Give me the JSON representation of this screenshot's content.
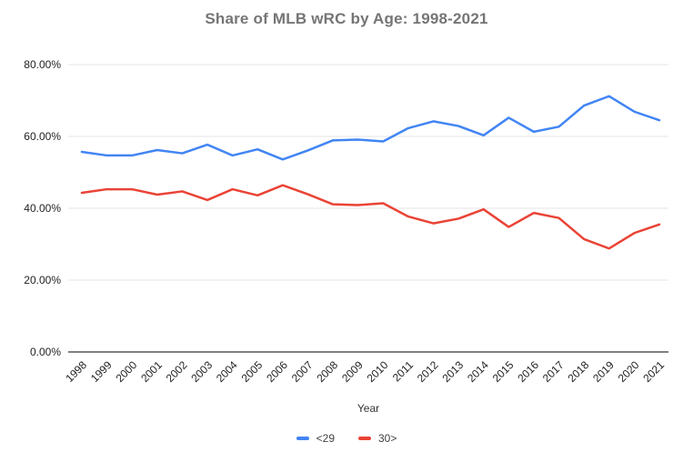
{
  "title": "Share of MLB wRC by Age: 1998-2021",
  "chart_data": {
    "type": "line",
    "title": "Share of MLB wRC by Age: 1998-2021",
    "xlabel": "Year",
    "ylabel": "",
    "ylim": [
      0,
      80
    ],
    "grid": true,
    "legend_position": "bottom",
    "yticks": [
      "0.00%",
      "20.00%",
      "40.00%",
      "60.00%",
      "80.00%"
    ],
    "ytick_values": [
      0,
      20,
      40,
      60,
      80
    ],
    "categories": [
      "1998",
      "1999",
      "2000",
      "2001",
      "2002",
      "2003",
      "2004",
      "2005",
      "2006",
      "2007",
      "2008",
      "2009",
      "2010",
      "2011",
      "2012",
      "2013",
      "2014",
      "2015",
      "2016",
      "2017",
      "2018",
      "2019",
      "2020",
      "2021"
    ],
    "series": [
      {
        "name": "<29",
        "color": "#4285F4",
        "values": [
          55.7,
          54.7,
          54.7,
          56.2,
          55.3,
          57.7,
          54.7,
          56.4,
          53.6,
          56.1,
          58.9,
          59.1,
          58.6,
          62.3,
          64.2,
          62.9,
          60.3,
          65.2,
          61.3,
          62.7,
          68.6,
          71.2,
          66.9,
          64.5
        ]
      },
      {
        "name": "30>",
        "color": "#EA4335",
        "values": [
          44.3,
          45.3,
          45.3,
          43.8,
          44.7,
          42.3,
          45.3,
          43.6,
          46.4,
          43.9,
          41.1,
          40.9,
          41.4,
          37.7,
          35.8,
          37.1,
          39.7,
          34.8,
          38.7,
          37.3,
          31.4,
          28.8,
          33.1,
          35.5
        ]
      }
    ],
    "colors": {
      "gridline": "#e6e6e6",
      "baseline": "#808080",
      "title_text": "#757575"
    }
  }
}
